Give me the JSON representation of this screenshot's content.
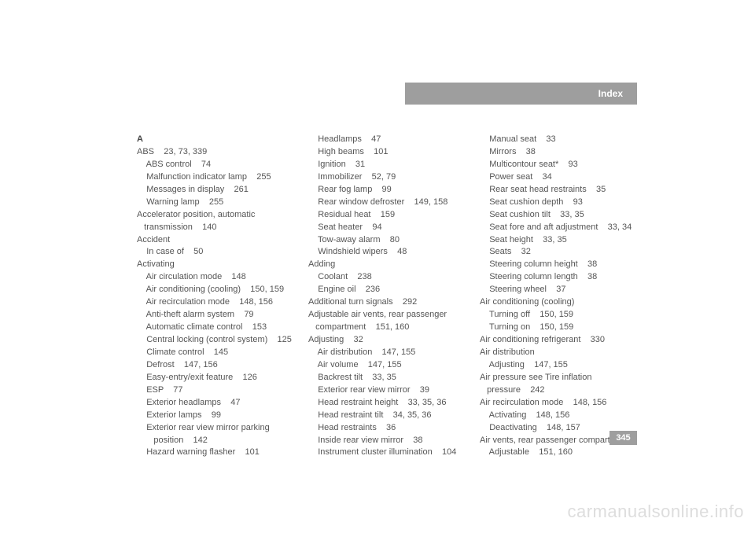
{
  "header": {
    "title": "Index"
  },
  "page_number": "345",
  "watermark": "carmanualsonline.info",
  "columns": [
    {
      "letter": "A",
      "lines": [
        "ABS    23, 73, 339",
        "    ABS control    74",
        "    Malfunction indicator lamp    255",
        "    Messages in display    261",
        "    Warning lamp    255",
        "Accelerator position, automatic",
        "   transmission    140",
        "Accident",
        "    In case of    50",
        "Activating",
        "    Air circulation mode    148",
        "    Air conditioning (cooling)    150, 159",
        "    Air recirculation mode    148, 156",
        "    Anti-theft alarm system    79",
        "    Automatic climate control    153",
        "    Central locking (control system)    125",
        "    Climate control    145",
        "    Defrost    147, 156",
        "    Easy-entry/exit feature    126",
        "    ESP    77",
        "    Exterior headlamps    47",
        "    Exterior lamps    99",
        "    Exterior rear view mirror parking",
        "       position    142",
        "    Hazard warning flasher    101"
      ]
    },
    {
      "lines": [
        "    Headlamps    47",
        "    High beams    101",
        "    Ignition    31",
        "    Immobilizer    52, 79",
        "    Rear fog lamp    99",
        "    Rear window defroster    149, 158",
        "    Residual heat    159",
        "    Seat heater    94",
        "    Tow-away alarm    80",
        "    Windshield wipers    48",
        "Adding",
        "    Coolant    238",
        "    Engine oil    236",
        "Additional turn signals    292",
        "Adjustable air vents, rear passenger",
        "   compartment    151, 160",
        "Adjusting    32",
        "    Air distribution    147, 155",
        "    Air volume    147, 155",
        "    Backrest tilt    33, 35",
        "    Exterior rear view mirror    39",
        "    Head restraint height    33, 35, 36",
        "    Head restraint tilt    34, 35, 36",
        "    Head restraints    36",
        "    Inside rear view mirror    38",
        "    Instrument cluster illumination    104"
      ]
    },
    {
      "lines": [
        "    Manual seat    33",
        "    Mirrors    38",
        "    Multicontour seat*    93",
        "    Power seat    34",
        "    Rear seat head restraints    35",
        "    Seat cushion depth    93",
        "    Seat cushion tilt    33, 35",
        "    Seat fore and aft adjustment    33, 34",
        "    Seat height    33, 35",
        "    Seats    32",
        "    Steering column height    38",
        "    Steering column length    38",
        "    Steering wheel    37",
        "Air conditioning (cooling)",
        "    Turning off    150, 159",
        "    Turning on    150, 159",
        "Air conditioning refrigerant    330",
        "Air distribution",
        "    Adjusting    147, 155",
        "Air pressure see Tire inflation",
        "   pressure    242",
        "Air recirculation mode    148, 156",
        "    Activating    148, 156",
        "    Deactivating    148, 157",
        "Air vents, rear passenger compartment",
        "    Adjustable    151, 160"
      ]
    }
  ]
}
